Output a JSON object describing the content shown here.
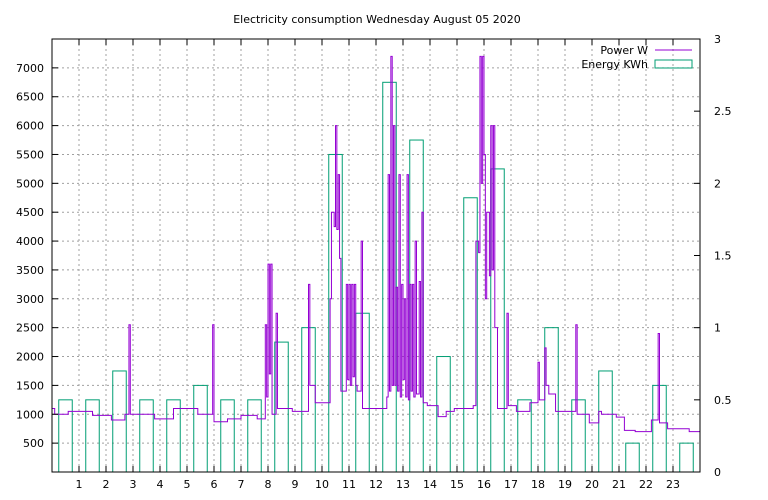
{
  "chart_data": {
    "type": "line",
    "title": "Electricity consumption Wednesday August 05 2020",
    "xlabel": "",
    "ylabel": "",
    "x_ticks": [
      1,
      2,
      3,
      4,
      5,
      6,
      7,
      8,
      9,
      10,
      11,
      12,
      13,
      14,
      15,
      16,
      17,
      18,
      19,
      20,
      21,
      22,
      23
    ],
    "xlim": [
      0,
      24
    ],
    "ylim_left": [
      0,
      7500
    ],
    "y_ticks_left": [
      500,
      1000,
      1500,
      2000,
      2500,
      3000,
      3500,
      4000,
      4500,
      5000,
      5500,
      6000,
      6500,
      7000
    ],
    "ylim_right": [
      0,
      3
    ],
    "y_ticks_right": [
      0,
      0.5,
      1,
      1.5,
      2,
      2.5,
      3
    ],
    "grid": true,
    "legend_position": "top-right",
    "series": [
      {
        "name": "Power W",
        "axis": "left",
        "style": "steps",
        "color": "#9400d3",
        "points": [
          [
            0,
            1100
          ],
          [
            0.1,
            1000
          ],
          [
            0.6,
            1050
          ],
          [
            1.5,
            980
          ],
          [
            2.2,
            900
          ],
          [
            2.7,
            1000
          ],
          [
            2.85,
            2550
          ],
          [
            2.9,
            1000
          ],
          [
            3.8,
            920
          ],
          [
            4.5,
            1100
          ],
          [
            5.4,
            1000
          ],
          [
            5.95,
            2550
          ],
          [
            6.0,
            870
          ],
          [
            6.5,
            920
          ],
          [
            7.0,
            980
          ],
          [
            7.6,
            920
          ],
          [
            7.9,
            2550
          ],
          [
            7.95,
            1300
          ],
          [
            8.0,
            3600
          ],
          [
            8.05,
            1700
          ],
          [
            8.1,
            3600
          ],
          [
            8.15,
            1000
          ],
          [
            8.3,
            2750
          ],
          [
            8.35,
            1100
          ],
          [
            8.9,
            1050
          ],
          [
            9.5,
            3250
          ],
          [
            9.55,
            1500
          ],
          [
            9.75,
            1200
          ],
          [
            10.3,
            3000
          ],
          [
            10.35,
            4500
          ],
          [
            10.45,
            4250
          ],
          [
            10.5,
            6000
          ],
          [
            10.55,
            4200
          ],
          [
            10.6,
            5150
          ],
          [
            10.65,
            3700
          ],
          [
            10.7,
            1400
          ],
          [
            10.9,
            3250
          ],
          [
            10.95,
            1600
          ],
          [
            11.0,
            3250
          ],
          [
            11.05,
            1500
          ],
          [
            11.1,
            3250
          ],
          [
            11.15,
            1650
          ],
          [
            11.2,
            3250
          ],
          [
            11.25,
            1500
          ],
          [
            11.3,
            1400
          ],
          [
            11.45,
            4000
          ],
          [
            11.5,
            1100
          ],
          [
            12.2,
            1100
          ],
          [
            12.4,
            1300
          ],
          [
            12.45,
            5150
          ],
          [
            12.5,
            1400
          ],
          [
            12.55,
            7200
          ],
          [
            12.6,
            1500
          ],
          [
            12.65,
            6000
          ],
          [
            12.7,
            1500
          ],
          [
            12.75,
            3200
          ],
          [
            12.8,
            1400
          ],
          [
            12.85,
            5150
          ],
          [
            12.9,
            1300
          ],
          [
            12.95,
            3250
          ],
          [
            13.0,
            1600
          ],
          [
            13.05,
            3000
          ],
          [
            13.1,
            1300
          ],
          [
            13.15,
            5150
          ],
          [
            13.2,
            1250
          ],
          [
            13.25,
            3250
          ],
          [
            13.3,
            1400
          ],
          [
            13.35,
            3250
          ],
          [
            13.4,
            1300
          ],
          [
            13.45,
            4000
          ],
          [
            13.5,
            1350
          ],
          [
            13.6,
            3300
          ],
          [
            13.65,
            1300
          ],
          [
            13.7,
            4500
          ],
          [
            13.75,
            1200
          ],
          [
            13.9,
            1150
          ],
          [
            14.3,
            960
          ],
          [
            14.6,
            1050
          ],
          [
            14.9,
            1100
          ],
          [
            15.5,
            1100
          ],
          [
            15.6,
            1150
          ],
          [
            15.7,
            4000
          ],
          [
            15.8,
            3800
          ],
          [
            15.85,
            7200
          ],
          [
            15.9,
            5000
          ],
          [
            15.95,
            7200
          ],
          [
            16.0,
            5500
          ],
          [
            16.05,
            3000
          ],
          [
            16.1,
            4500
          ],
          [
            16.15,
            4500
          ],
          [
            16.2,
            3400
          ],
          [
            16.25,
            6000
          ],
          [
            16.3,
            3500
          ],
          [
            16.35,
            6000
          ],
          [
            16.4,
            2500
          ],
          [
            16.5,
            1100
          ],
          [
            16.85,
            2750
          ],
          [
            16.9,
            1150
          ],
          [
            17.2,
            1050
          ],
          [
            17.7,
            1200
          ],
          [
            18.0,
            1900
          ],
          [
            18.05,
            1250
          ],
          [
            18.25,
            2150
          ],
          [
            18.3,
            1500
          ],
          [
            18.4,
            1350
          ],
          [
            18.65,
            1050
          ],
          [
            19.4,
            2550
          ],
          [
            19.45,
            1000
          ],
          [
            19.9,
            850
          ],
          [
            20.25,
            1050
          ],
          [
            20.35,
            1000
          ],
          [
            20.9,
            950
          ],
          [
            21.2,
            720
          ],
          [
            21.6,
            700
          ],
          [
            22.2,
            900
          ],
          [
            22.45,
            2400
          ],
          [
            22.5,
            850
          ],
          [
            22.8,
            750
          ],
          [
            23.6,
            700
          ],
          [
            24.0,
            850
          ]
        ]
      },
      {
        "name": "Energy KWh",
        "axis": "right",
        "style": "boxes",
        "color": "#009e73",
        "values": [
          0.5,
          0.5,
          0.7,
          0.5,
          0.5,
          0.6,
          0.5,
          0.5,
          0.9,
          1.0,
          2.2,
          1.1,
          2.7,
          2.3,
          0.8,
          1.9,
          2.1,
          0.5,
          1.0,
          0.5,
          0.7,
          0.2,
          0.6,
          0.2
        ]
      }
    ]
  }
}
